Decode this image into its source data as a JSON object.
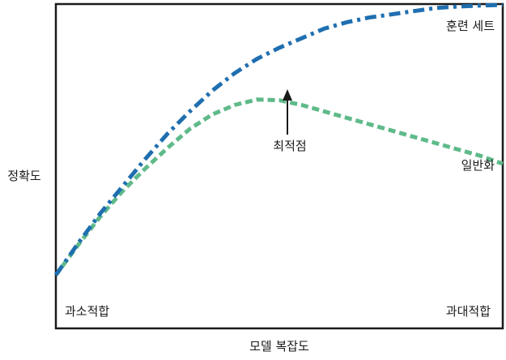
{
  "chart_data": {
    "type": "line",
    "title": "",
    "xlabel": "모델 복잡도",
    "ylabel": "정확도",
    "xlim": [
      0,
      1
    ],
    "ylim": [
      0,
      1
    ],
    "grid": false,
    "series": [
      {
        "name": "훈련 세트",
        "color": "#1f6fb0",
        "line_style": "dash-dot",
        "x": [
          0,
          0.05,
          0.1,
          0.15,
          0.2,
          0.25,
          0.3,
          0.35,
          0.4,
          0.45,
          0.5,
          0.55,
          0.6,
          0.65,
          0.7,
          0.75,
          0.8,
          0.85,
          0.9,
          0.95,
          1.0
        ],
        "y": [
          0.15,
          0.25,
          0.345,
          0.43,
          0.515,
          0.595,
          0.665,
          0.73,
          0.785,
          0.83,
          0.865,
          0.895,
          0.925,
          0.945,
          0.96,
          0.97,
          0.98,
          0.99,
          0.995,
          0.998,
          1.0
        ]
      },
      {
        "name": "일반화",
        "color": "#5fba8a",
        "line_style": "dashed",
        "x": [
          0,
          0.05,
          0.1,
          0.15,
          0.2,
          0.25,
          0.3,
          0.35,
          0.4,
          0.45,
          0.5,
          0.55,
          0.6,
          0.65,
          0.7,
          0.75,
          0.8,
          0.85,
          0.9,
          0.95,
          1.0
        ],
        "y": [
          0.15,
          0.245,
          0.335,
          0.415,
          0.485,
          0.55,
          0.61,
          0.655,
          0.685,
          0.702,
          0.7,
          0.685,
          0.665,
          0.645,
          0.625,
          0.605,
          0.585,
          0.565,
          0.545,
          0.525,
          0.5
        ]
      }
    ],
    "annotations": {
      "optimum": {
        "text": "최적점",
        "x": 0.48,
        "y": 0.7
      },
      "underfitting": "과소적합",
      "overfitting": "과대적합"
    }
  }
}
